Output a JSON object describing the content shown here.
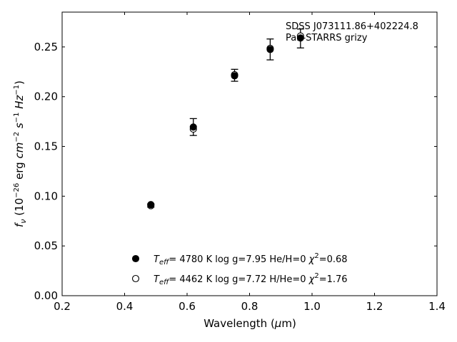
{
  "chart_data": {
    "type": "scatter",
    "xlabel": "Wavelength (μm)",
    "ylabel": "f_ν (10^-26 erg cm^-2 s^-1 Hz^-1)",
    "xlim": [
      0.2,
      1.4
    ],
    "ylim": [
      0.0,
      0.285
    ],
    "x_ticks": [
      "0.2",
      "0.4",
      "0.6",
      "0.8",
      "1.0",
      "1.2",
      "1.4"
    ],
    "y_ticks": [
      "0.00",
      "0.05",
      "0.10",
      "0.15",
      "0.20",
      "0.25"
    ],
    "annotations": [
      "SDSS J073111.86+402224.8",
      "Pan-STARRS grizy"
    ],
    "legend_position": "bottom-center",
    "observed": {
      "x": [
        0.484,
        0.62,
        0.752,
        0.866,
        0.963
      ],
      "y": [
        0.0905,
        0.1695,
        0.2215,
        0.2475,
        0.2585
      ],
      "yerr": [
        0.0015,
        0.0085,
        0.006,
        0.0105,
        0.0095
      ]
    },
    "series": [
      {
        "marker": "filled",
        "label": {
          "teff_prefix": "T",
          "teff_sub": "eff",
          "rest": "=  4780 K  log g=7.95  He/H=0  ",
          "chi": "χ",
          "chi_sup": "2",
          "chi_rest": "=0.68"
        },
        "x": [
          0.484,
          0.62,
          0.752,
          0.866,
          0.963
        ],
        "y": [
          0.0915,
          0.1695,
          0.221,
          0.2475,
          0.259
        ]
      },
      {
        "marker": "open",
        "label": {
          "teff_prefix": "T",
          "teff_sub": "eff",
          "rest": "=  4462 K  log g=7.72  H/He=0  ",
          "chi": "χ",
          "chi_sup": "2",
          "chi_rest": "=1.76"
        },
        "x": [
          0.484,
          0.62,
          0.752,
          0.866,
          0.963
        ],
        "y": [
          0.0905,
          0.1675,
          0.222,
          0.2485,
          0.261
        ]
      }
    ]
  }
}
